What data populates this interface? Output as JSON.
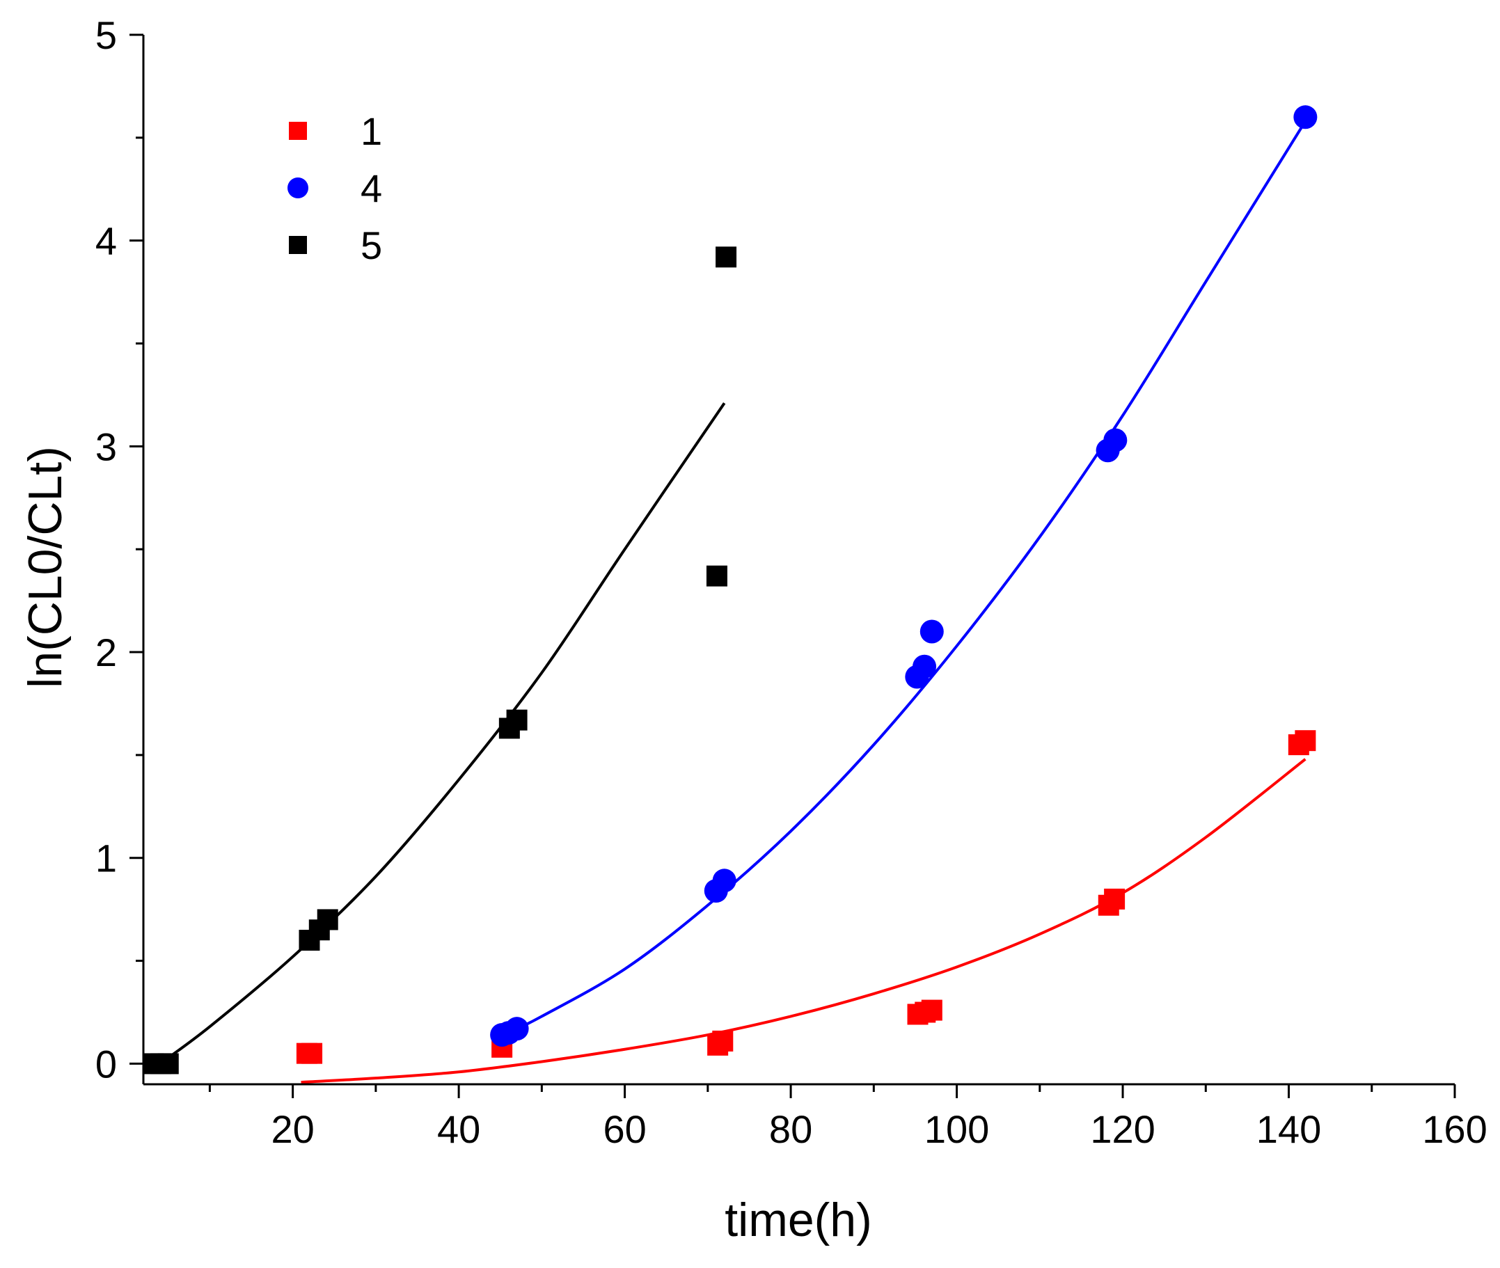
{
  "chart_data": {
    "type": "scatter",
    "xlabel": "time(h)",
    "ylabel": "ln(CL0/CLt)",
    "xlim": [
      2,
      160
    ],
    "ylim": [
      -0.1,
      5
    ],
    "x_ticks_major": [
      20,
      40,
      60,
      80,
      100,
      120,
      140,
      160
    ],
    "x_ticks_minor": [
      10,
      30,
      50,
      70,
      90,
      110,
      130,
      150
    ],
    "y_ticks_major": [
      0,
      1,
      2,
      3,
      4,
      5
    ],
    "y_ticks_minor": [
      0.5,
      1.5,
      2.5,
      3.5,
      4.5
    ],
    "grid": false,
    "legend": {
      "position": "top-left"
    },
    "series": [
      {
        "name": "1",
        "marker": "square",
        "color": "#ff0000",
        "points": [
          [
            21.7,
            0.05
          ],
          [
            22.3,
            0.05
          ],
          [
            45.2,
            0.08
          ],
          [
            71.2,
            0.09
          ],
          [
            71.8,
            0.11
          ],
          [
            95.3,
            0.24
          ],
          [
            96.2,
            0.25
          ],
          [
            97.0,
            0.26
          ],
          [
            118.3,
            0.77
          ],
          [
            119.0,
            0.8
          ],
          [
            141.2,
            1.55
          ],
          [
            142.0,
            1.57
          ]
        ],
        "fit": [
          [
            21,
            -0.09
          ],
          [
            30,
            -0.07
          ],
          [
            40,
            -0.04
          ],
          [
            50,
            0.01
          ],
          [
            60,
            0.07
          ],
          [
            70,
            0.14
          ],
          [
            80,
            0.23
          ],
          [
            90,
            0.34
          ],
          [
            100,
            0.47
          ],
          [
            110,
            0.63
          ],
          [
            120,
            0.83
          ],
          [
            130,
            1.1
          ],
          [
            142,
            1.48
          ]
        ]
      },
      {
        "name": "4",
        "marker": "circle",
        "color": "#0000ff",
        "points": [
          [
            45.2,
            0.14
          ],
          [
            46.0,
            0.15
          ],
          [
            47.0,
            0.17
          ],
          [
            71.0,
            0.84
          ],
          [
            72.0,
            0.89
          ],
          [
            95.2,
            1.88
          ],
          [
            96.1,
            1.93
          ],
          [
            97.0,
            2.1
          ],
          [
            118.2,
            2.98
          ],
          [
            119.1,
            3.03
          ],
          [
            142.0,
            4.6
          ]
        ],
        "fit": [
          [
            45,
            0.13
          ],
          [
            50,
            0.23
          ],
          [
            60,
            0.46
          ],
          [
            70,
            0.77
          ],
          [
            80,
            1.13
          ],
          [
            90,
            1.55
          ],
          [
            100,
            2.03
          ],
          [
            110,
            2.56
          ],
          [
            120,
            3.15
          ],
          [
            130,
            3.8
          ],
          [
            142,
            4.58
          ]
        ]
      },
      {
        "name": "5",
        "marker": "square",
        "color": "#000000",
        "points": [
          [
            3.2,
            0.0
          ],
          [
            4.1,
            0.0
          ],
          [
            5.0,
            0.0
          ],
          [
            22.0,
            0.6
          ],
          [
            23.2,
            0.65
          ],
          [
            24.2,
            0.7
          ],
          [
            46.1,
            1.63
          ],
          [
            47.0,
            1.67
          ],
          [
            71.1,
            2.37
          ],
          [
            72.2,
            3.92
          ]
        ],
        "fit": [
          [
            4,
            0.0
          ],
          [
            10,
            0.18
          ],
          [
            20,
            0.52
          ],
          [
            30,
            0.91
          ],
          [
            40,
            1.38
          ],
          [
            50,
            1.9
          ],
          [
            60,
            2.5
          ],
          [
            72,
            3.21
          ]
        ]
      }
    ]
  }
}
